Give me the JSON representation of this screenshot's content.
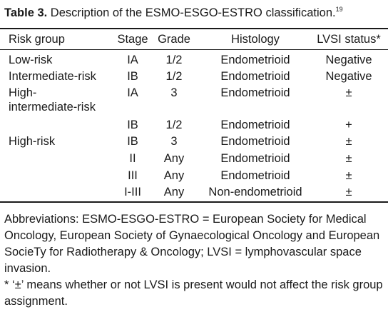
{
  "caption": {
    "label": "Table 3.",
    "text": " Description of the ESMO-ESGO-ESTRO classification.",
    "ref": "19"
  },
  "table": {
    "headers": {
      "risk_group": "Risk group",
      "stage": "Stage",
      "grade": "Grade",
      "histology": "Histology",
      "lvsi": "LVSI status*"
    },
    "rows": [
      {
        "risk": "Low-risk",
        "stage": "IA",
        "grade": "1/2",
        "histology": "Endometrioid",
        "lvsi": "Negative"
      },
      {
        "risk": "Intermediate-risk",
        "stage": "IB",
        "grade": "1/2",
        "histology": "Endometrioid",
        "lvsi": "Negative"
      },
      {
        "risk": "High-",
        "risk_line2": "intermediate-risk",
        "stage": "IA",
        "grade": "3",
        "histology": "Endometrioid",
        "lvsi": "±"
      },
      {
        "risk": "",
        "stage": "IB",
        "grade": "1/2",
        "histology": "Endometrioid",
        "lvsi": "+"
      },
      {
        "risk": "High-risk",
        "stage": "IB",
        "grade": "3",
        "histology": "Endometrioid",
        "lvsi": "±"
      },
      {
        "risk": "",
        "stage": "II",
        "grade": "Any",
        "histology": "Endometrioid",
        "lvsi": "±"
      },
      {
        "risk": "",
        "stage": "III",
        "grade": "Any",
        "histology": "Endometrioid",
        "lvsi": "±"
      },
      {
        "risk": "",
        "stage": "I-III",
        "grade": "Any",
        "histology": "Non-endometrioid",
        "lvsi": "±"
      }
    ]
  },
  "footnotes": {
    "abbreviations": "Abbreviations: ESMO-ESGO-ESTRO = European Society for Medical Oncology, European Society of Gynaecological Oncology and European SocieTy for Radiotherapy & Oncology; LVSI = lymphovascular space invasion.",
    "asterisk": "* ‘±’ means whether or not LVSI is present would not affect the risk group assignment."
  }
}
